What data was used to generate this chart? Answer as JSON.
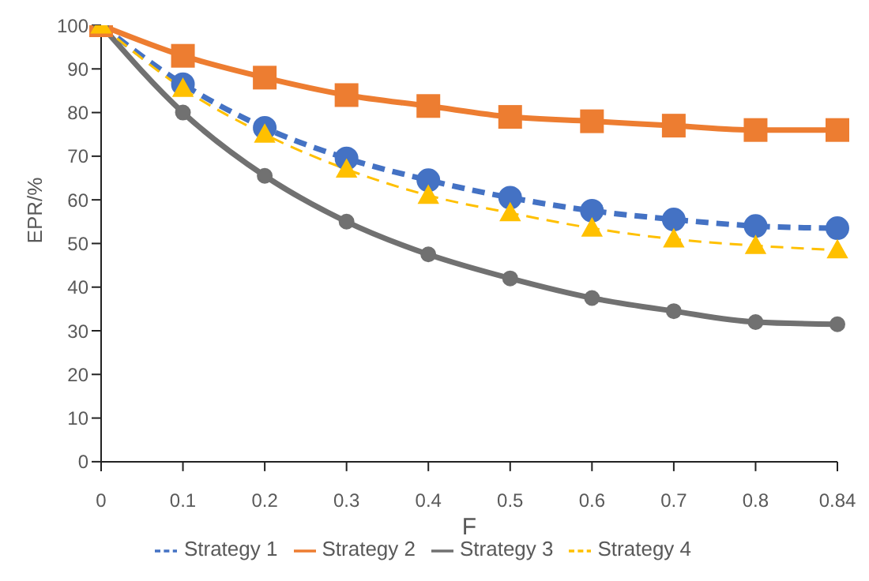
{
  "chart_data": {
    "type": "line",
    "xlabel": "F",
    "ylabel": "EPR/%",
    "categories": [
      "0",
      "0.1",
      "0.2",
      "0.3",
      "0.4",
      "0.5",
      "0.6",
      "0.7",
      "0.8",
      "0.84"
    ],
    "series": [
      {
        "name": "Strategy 1",
        "color": "#4472c4",
        "marker": "circle",
        "line_style": "dashed",
        "values": [
          100,
          86.5,
          76.5,
          69.5,
          64.5,
          60.5,
          57.5,
          55.5,
          54,
          53.5
        ]
      },
      {
        "name": "Strategy 2",
        "color": "#ed7d31",
        "marker": "square",
        "line_style": "solid",
        "values": [
          100,
          93,
          88,
          84,
          81.5,
          79,
          78,
          77,
          76,
          76
        ]
      },
      {
        "name": "Strategy 3",
        "color": "#717171",
        "marker": "circle",
        "line_style": "solid",
        "values": [
          100,
          80,
          65.5,
          55,
          47.5,
          42,
          37.5,
          34.5,
          32,
          31.5
        ]
      },
      {
        "name": "Strategy 4",
        "color": "#ffc000",
        "marker": "triangle",
        "line_style": "dashed",
        "values": [
          100,
          85.5,
          75,
          67,
          61,
          57,
          53.5,
          51,
          49.5,
          48.5
        ]
      }
    ],
    "ylim": [
      0,
      100
    ],
    "yticks": [
      0,
      10,
      20,
      30,
      40,
      50,
      60,
      70,
      80,
      90,
      100
    ],
    "grid": false,
    "legend": "bottom"
  }
}
